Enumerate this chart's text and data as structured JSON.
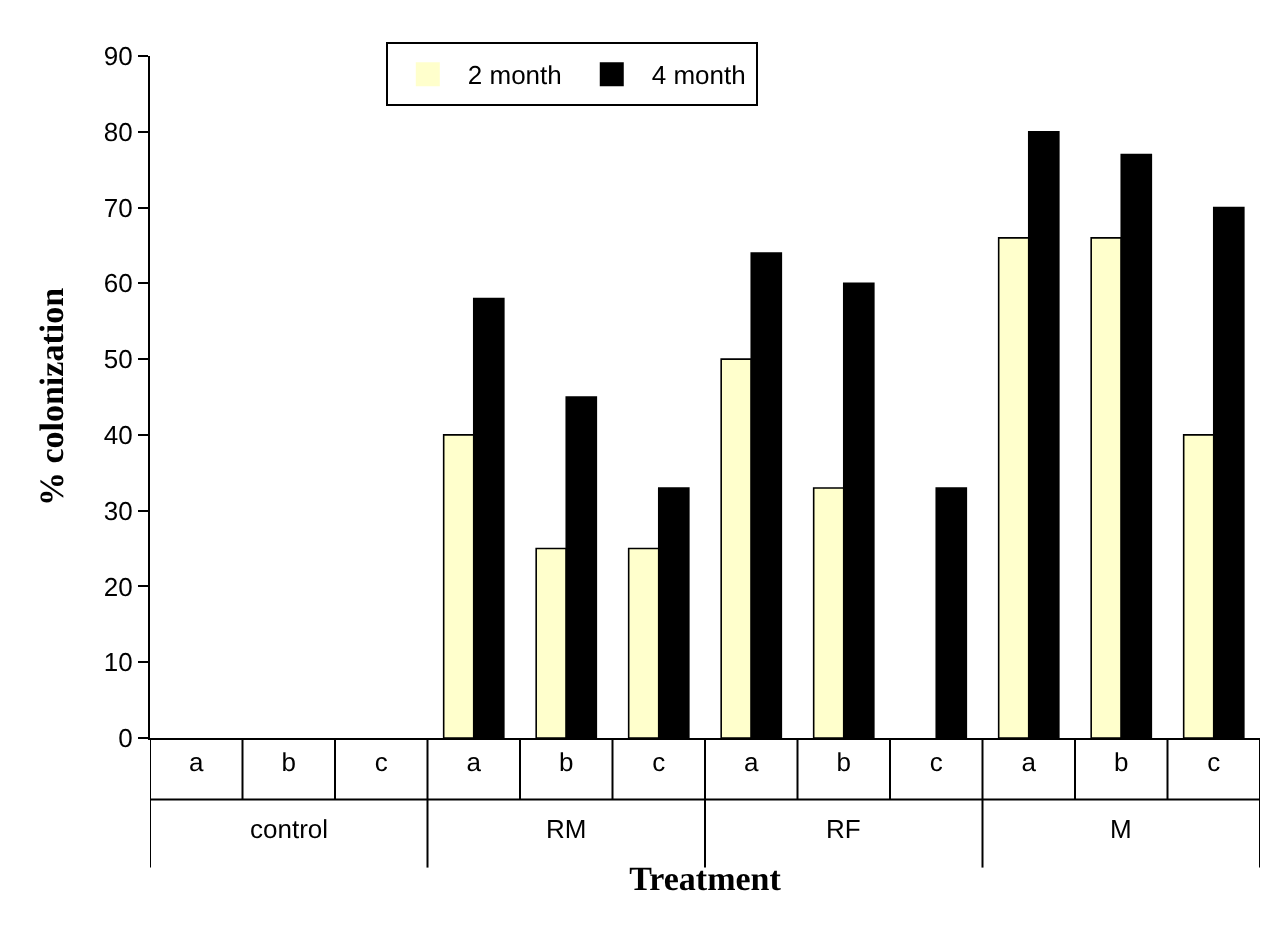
{
  "chart_data": {
    "type": "bar",
    "xlabel": "Treatment",
    "ylabel": "% colonization",
    "categories": [
      "a",
      "b",
      "c",
      "a",
      "b",
      "c",
      "a",
      "b",
      "c",
      "a",
      "b",
      "c"
    ],
    "annotations": [
      "control",
      "RM",
      "RF",
      "M"
    ],
    "series": [
      {
        "name": "2 month",
        "color": "#ffffcc",
        "values": [
          0,
          0,
          0,
          40,
          25,
          25,
          50,
          33,
          0,
          66,
          66,
          40
        ]
      },
      {
        "name": "4 month",
        "color": "#000000",
        "values": [
          0,
          0,
          0,
          58,
          45,
          33,
          64,
          60,
          33,
          80,
          77,
          70
        ]
      }
    ],
    "ylim": [
      0,
      90
    ],
    "yticks": [
      0,
      10,
      20,
      30,
      40,
      50,
      60,
      70,
      80,
      90
    ],
    "grid": false,
    "legend": "top"
  }
}
